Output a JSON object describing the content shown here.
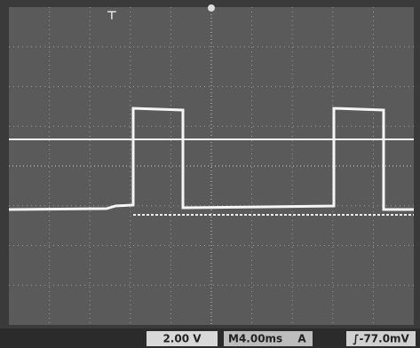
{
  "status_bar": {
    "volts_per_div": "2.00 V",
    "time_per_div": "M4.00ms",
    "trigger_channel": "A",
    "trigger_level": "∫-77.0mV"
  }
}
